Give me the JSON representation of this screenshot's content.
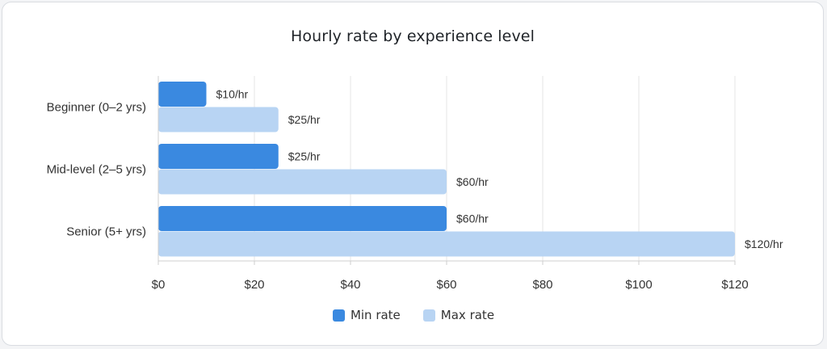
{
  "chart_data": {
    "type": "bar",
    "orientation": "horizontal",
    "title": "Hourly rate by experience level",
    "xlabel": "",
    "ylabel": "",
    "categories": [
      "Beginner (0–2 yrs)",
      "Mid-level (2–5 yrs)",
      "Senior (5+ yrs)"
    ],
    "series": [
      {
        "name": "Min rate",
        "color": "#3a89e0",
        "values": [
          10,
          25,
          60
        ],
        "labels": [
          "$10/hr",
          "$25/hr",
          "$60/hr"
        ]
      },
      {
        "name": "Max rate",
        "color": "#b8d4f3",
        "values": [
          25,
          60,
          120
        ],
        "labels": [
          "$25/hr",
          "$60/hr",
          "$120/hr"
        ]
      }
    ],
    "xlim": [
      0,
      120
    ],
    "xticks": [
      0,
      20,
      40,
      60,
      80,
      100,
      120
    ],
    "xtick_labels": [
      "$0",
      "$20",
      "$40",
      "$60",
      "$80",
      "$100",
      "$120"
    ],
    "grid": "vertical",
    "legend_position": "bottom"
  }
}
